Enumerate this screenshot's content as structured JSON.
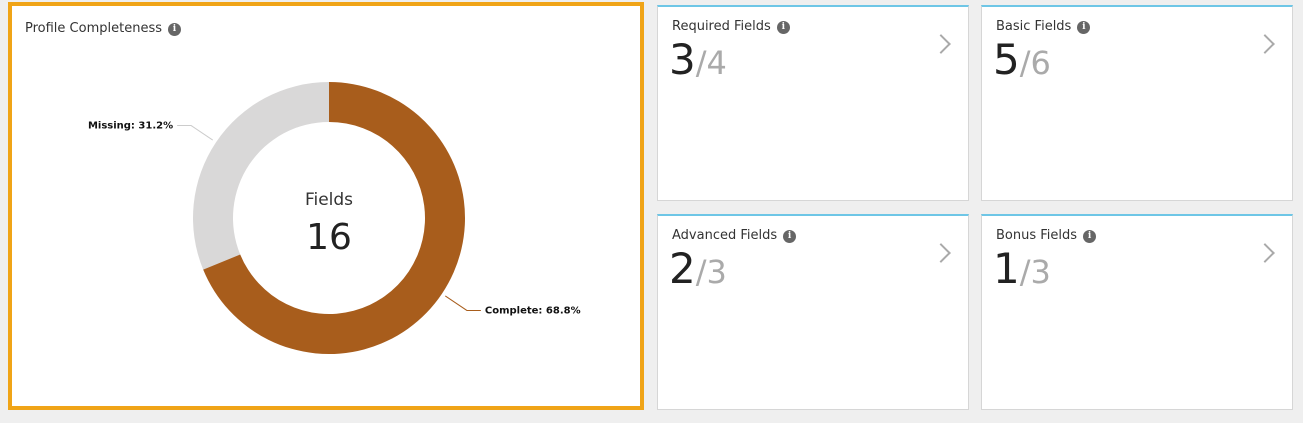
{
  "panel": {
    "title": "Profile Completeness"
  },
  "chart_data": {
    "type": "donut",
    "center_label": "Fields",
    "center_value": 16,
    "values": [
      68.8,
      31.2
    ],
    "value_labels": [
      "Complete: 68.8%",
      "Missing: 31.2%"
    ],
    "colors": [
      "#a85d1c",
      "#d9d8d8"
    ]
  },
  "separator": "/",
  "cards": [
    {
      "title": "Required Fields",
      "value": 3,
      "total": 4
    },
    {
      "title": "Basic Fields",
      "value": 5,
      "total": 6
    },
    {
      "title": "Advanced Fields",
      "value": 2,
      "total": 3
    },
    {
      "title": "Bonus Fields",
      "value": 1,
      "total": 3
    }
  ]
}
